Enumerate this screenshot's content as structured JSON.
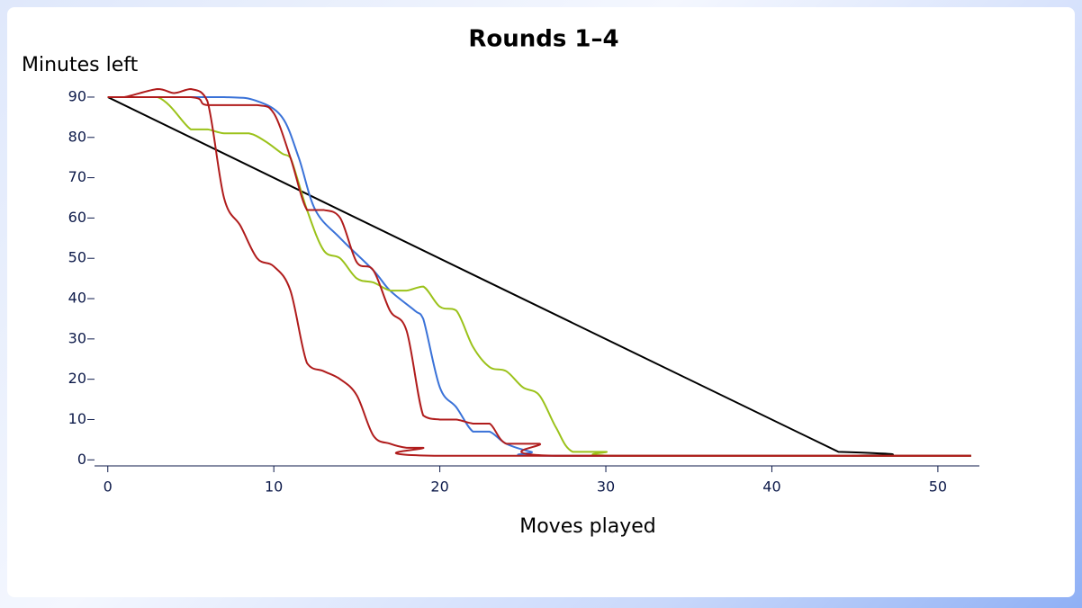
{
  "chart_data": {
    "type": "line",
    "title": "Rounds 1–4",
    "y_label": "Minutes left",
    "x_label": "Moves played",
    "xlim": [
      -0.8,
      52.5
    ],
    "ylim": [
      -1.5,
      92
    ],
    "xticks": [
      0,
      10,
      20,
      30,
      40,
      50
    ],
    "yticks": [
      0,
      10,
      20,
      30,
      40,
      50,
      60,
      70,
      80,
      90
    ],
    "series": [
      {
        "color": "#000000",
        "x": [
          0,
          44,
          45,
          52
        ],
        "values": [
          90,
          2,
          1,
          1
        ]
      },
      {
        "color": "#3a72d8",
        "x": [
          0,
          7,
          9,
          10.5,
          11.5,
          12.5,
          14,
          16,
          17,
          18.5,
          19,
          20,
          21,
          22,
          23,
          24,
          25.5,
          27,
          52
        ],
        "values": [
          90,
          90,
          89,
          85,
          75,
          62,
          55,
          47,
          42,
          37,
          35,
          18,
          13,
          7,
          7,
          4,
          2,
          1,
          1
        ]
      },
      {
        "color": "#9bc21a",
        "x": [
          0,
          3,
          5,
          6,
          7,
          8.5,
          9.5,
          10.5,
          11,
          12,
          13,
          14,
          15,
          16,
          17,
          18,
          19,
          20,
          21,
          22,
          23,
          24,
          25,
          26,
          27,
          28,
          30,
          31,
          52
        ],
        "values": [
          90,
          90,
          82,
          82,
          81,
          81,
          79,
          76,
          75,
          62,
          52,
          50,
          45,
          44,
          42,
          42,
          43,
          38,
          37,
          28,
          23,
          22,
          18,
          16,
          8,
          2,
          2,
          1,
          1
        ]
      },
      {
        "color": "#b01c1c",
        "x": [
          0,
          1,
          3,
          4,
          5,
          6,
          7,
          8,
          9,
          10,
          11,
          12,
          13,
          14,
          15,
          16,
          17,
          18,
          19,
          20,
          52
        ],
        "values": [
          90,
          90,
          92,
          91,
          92,
          89,
          65,
          58,
          50,
          48,
          42,
          24,
          22,
          20,
          16,
          6,
          4,
          3,
          3,
          1,
          1
        ]
      },
      {
        "color": "#b01c1c",
        "x": [
          0,
          5,
          6,
          9,
          10,
          11,
          12,
          13,
          14,
          15,
          16,
          17,
          18,
          19,
          20,
          21,
          22,
          23,
          24,
          26,
          27,
          52
        ],
        "values": [
          90,
          90,
          88,
          88,
          86,
          75,
          62,
          62,
          60,
          49,
          47,
          37,
          32,
          11,
          10,
          10,
          9,
          9,
          4,
          4,
          1,
          1
        ]
      }
    ]
  }
}
